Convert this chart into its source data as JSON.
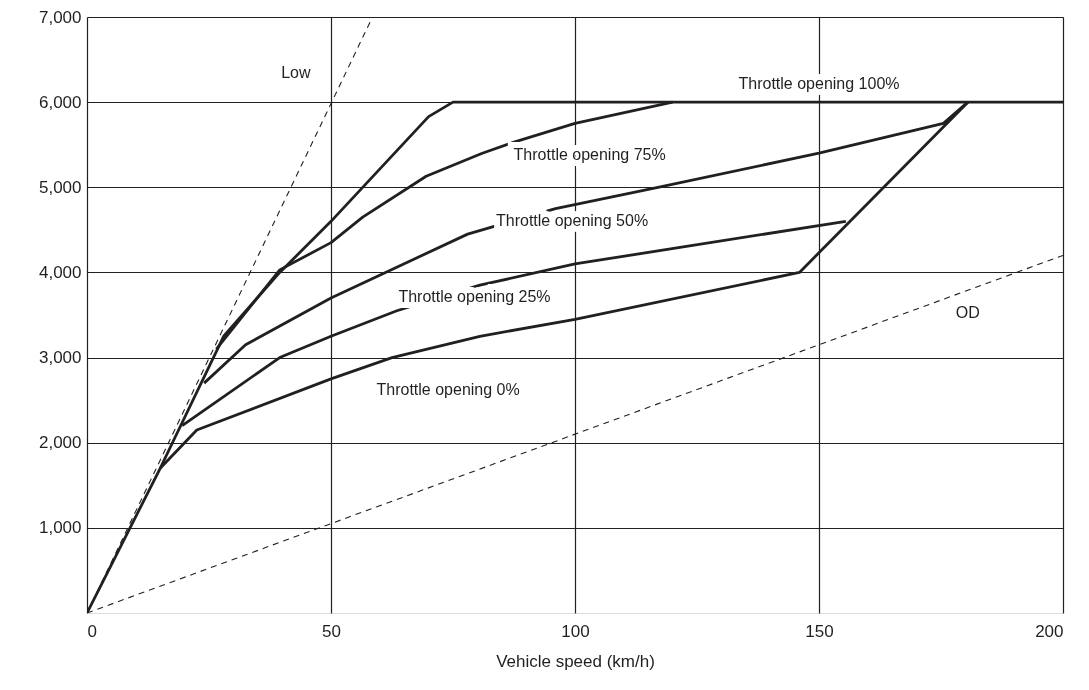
{
  "chart_data": {
    "type": "line",
    "xlabel": "Vehicle speed  (km/h)",
    "xlim": [
      0,
      200
    ],
    "ylim": [
      0,
      7000
    ],
    "xticks": [
      0,
      50,
      100,
      150,
      200
    ],
    "yticks": [
      {
        "value": 1000,
        "label": "1,000"
      },
      {
        "value": 2000,
        "label": "2,000"
      },
      {
        "value": 3000,
        "label": "3,000"
      },
      {
        "value": 4000,
        "label": "4,000"
      },
      {
        "value": 5000,
        "label": "5,000"
      },
      {
        "value": 6000,
        "label": "6,000"
      },
      {
        "value": 7000,
        "label": "7,000"
      }
    ],
    "grid": true,
    "marker": "none",
    "series": [
      {
        "name": "Throttle opening 100%",
        "color": "#231f20",
        "line_style": "solid",
        "x": [
          15,
          28,
          39.5,
          50,
          70,
          75,
          200
        ],
        "values": [
          1700,
          3250,
          4000,
          4600,
          5830,
          6000,
          6000
        ]
      },
      {
        "name": "Throttle opening 75%",
        "color": "#231f20",
        "line_style": "solid",
        "x": [
          26.5,
          39.5,
          50,
          56.5,
          69.5,
          81,
          87.5,
          100,
          120
        ],
        "values": [
          3100,
          4030,
          4350,
          4650,
          5130,
          5400,
          5530,
          5750,
          6000
        ]
      },
      {
        "name": "Throttle opening 50%",
        "color": "#231f20",
        "line_style": "solid",
        "x": [
          24,
          32.5,
          50,
          78,
          96,
          117,
          150,
          175.5,
          180.5
        ],
        "values": [
          2700,
          3150,
          3700,
          4450,
          4750,
          5000,
          5400,
          5750,
          6000
        ]
      },
      {
        "name": "Throttle opening 25%",
        "color": "#231f20",
        "line_style": "solid",
        "x": [
          19.5,
          39.5,
          50,
          63.5,
          80.5,
          100,
          155.5
        ],
        "values": [
          2200,
          3000,
          3250,
          3550,
          3850,
          4100,
          4600
        ]
      },
      {
        "name": "Throttle opening 0%",
        "color": "#231f20",
        "line_style": "solid",
        "x": [
          0,
          15,
          22.5,
          50,
          62.5,
          80.5,
          100,
          146,
          180.5
        ],
        "values": [
          0,
          1700,
          2150,
          2750,
          3000,
          3250,
          3450,
          4000,
          6000
        ]
      },
      {
        "name": "Low",
        "color": "#231f20",
        "line_style": "dashed",
        "x": [
          0,
          58.5
        ],
        "values": [
          0,
          7000
        ]
      },
      {
        "name": "OD",
        "color": "#231f20",
        "line_style": "dashed",
        "x": [
          0,
          200
        ],
        "values": [
          0,
          4200
        ]
      }
    ]
  }
}
